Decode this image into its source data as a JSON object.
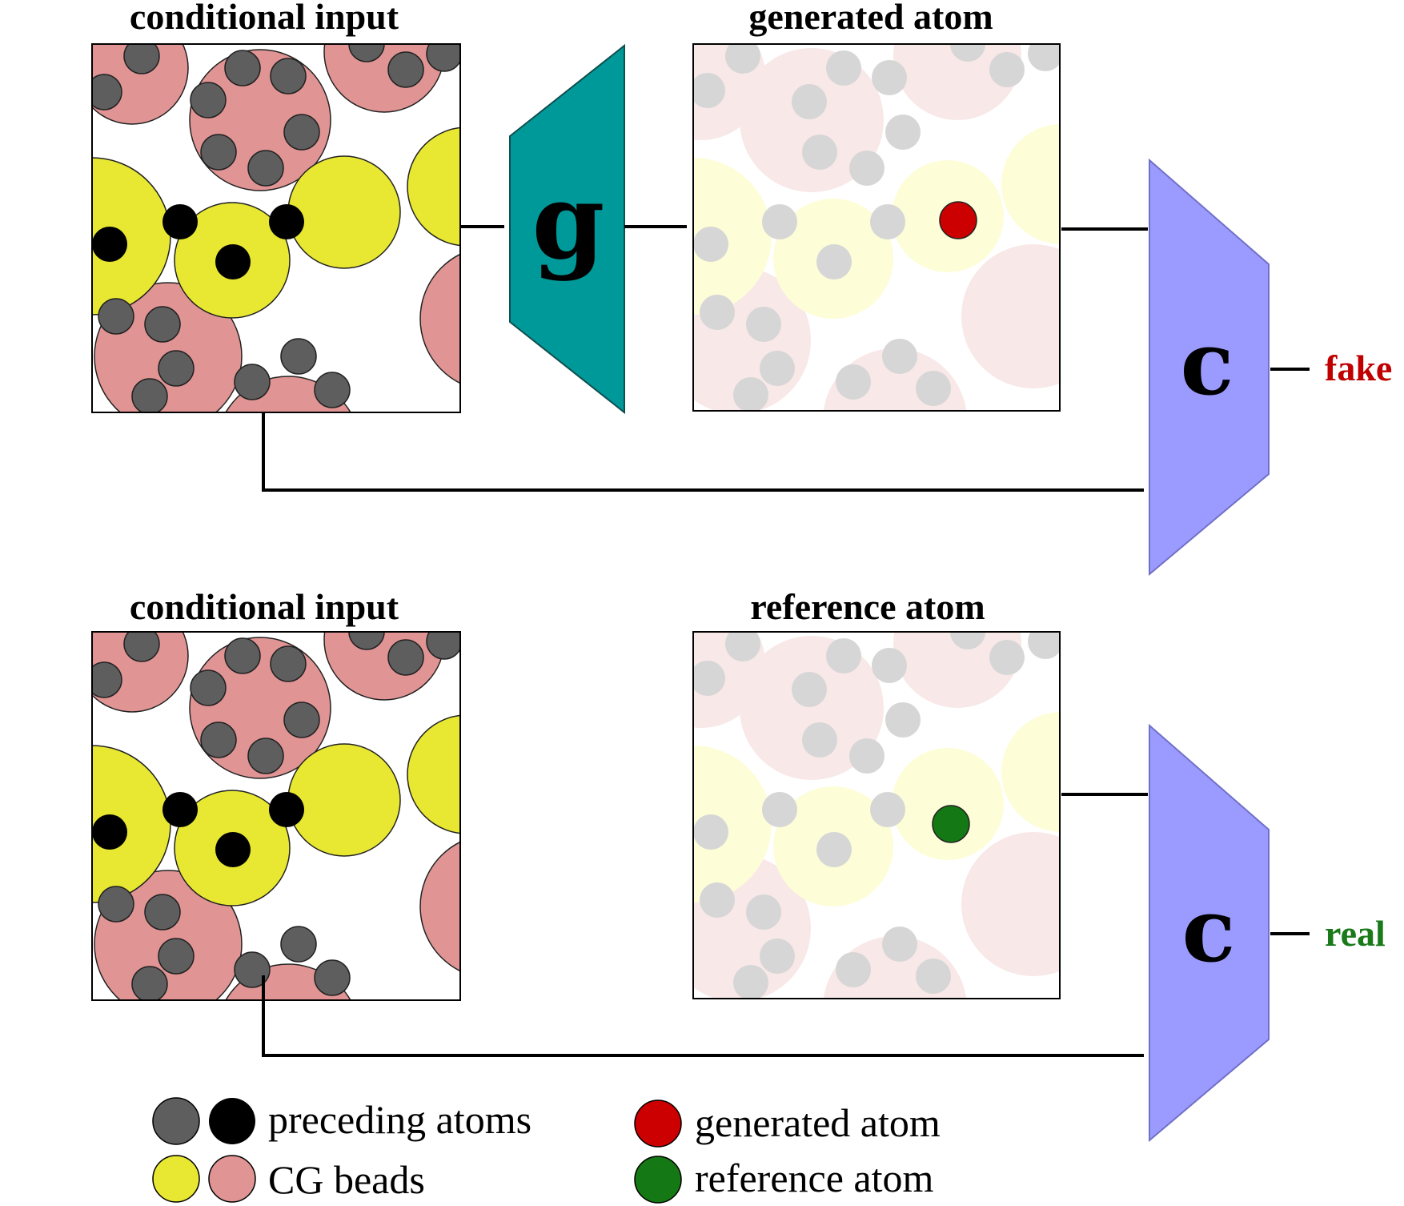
{
  "panels": {
    "top_input_title": "conditional input",
    "generated_title": "generated atom",
    "bottom_input_title": "conditional input",
    "reference_title": "reference atom"
  },
  "networks": {
    "generator_label": "g",
    "critic_top_label": "c",
    "critic_bottom_label": "c"
  },
  "outputs": {
    "fake": "fake",
    "real": "real"
  },
  "legend": {
    "preceding_atoms": "preceding atoms",
    "cg_beads": "CG beads",
    "generated_atom": "generated atom",
    "reference_atom": "reference atom"
  },
  "colors": {
    "cg_bead_yellow": "#E8E832",
    "cg_bead_pink": "#E09494",
    "atom_grey": "#5E5E5E",
    "atom_black": "#000000",
    "generated_atom_red": "#CC0000",
    "reference_atom_green": "#147814",
    "generator_teal": "#009999",
    "critic_blue": "#9B9BFF",
    "fake_red": "#C00000",
    "real_green": "#1A7A1A"
  },
  "icons": {
    "generator": "trapezoid-network",
    "critic": "trapezoid-network"
  }
}
